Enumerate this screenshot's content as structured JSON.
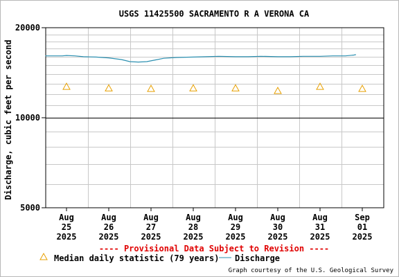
{
  "chart_data": {
    "type": "line",
    "title": "USGS 11425500 SACRAMENTO R A VERONA CA",
    "ylabel": "Discharge, cubic feet per second",
    "xlabel": "",
    "y_scale": "log",
    "ylim": [
      5000,
      20000
    ],
    "y_ticks": [
      {
        "value": 5000,
        "label": "5000"
      },
      {
        "value": 10000,
        "label": "10000"
      },
      {
        "value": 20000,
        "label": "20000"
      }
    ],
    "x_ticks": [
      {
        "month": "Aug",
        "day": "25",
        "year": "2025"
      },
      {
        "month": "Aug",
        "day": "26",
        "year": "2025"
      },
      {
        "month": "Aug",
        "day": "27",
        "year": "2025"
      },
      {
        "month": "Aug",
        "day": "28",
        "year": "2025"
      },
      {
        "month": "Aug",
        "day": "29",
        "year": "2025"
      },
      {
        "month": "Aug",
        "day": "30",
        "year": "2025"
      },
      {
        "month": "Aug",
        "day": "31",
        "year": "2025"
      },
      {
        "month": "Sep",
        "day": "01",
        "year": "2025"
      }
    ],
    "grid": true,
    "series": [
      {
        "name": "Discharge",
        "color": "#2a8fb0",
        "points": [
          [
            -0.5,
            16100
          ],
          [
            -0.1,
            16100
          ],
          [
            0.0,
            16150
          ],
          [
            0.2,
            16100
          ],
          [
            0.4,
            16000
          ],
          [
            0.7,
            15950
          ],
          [
            1.0,
            15850
          ],
          [
            1.3,
            15650
          ],
          [
            1.5,
            15400
          ],
          [
            1.7,
            15350
          ],
          [
            1.9,
            15400
          ],
          [
            2.1,
            15600
          ],
          [
            2.3,
            15800
          ],
          [
            2.6,
            15900
          ],
          [
            3.0,
            15950
          ],
          [
            3.3,
            16000
          ],
          [
            3.6,
            16050
          ],
          [
            4.0,
            16000
          ],
          [
            4.3,
            16000
          ],
          [
            4.6,
            16050
          ],
          [
            5.0,
            16000
          ],
          [
            5.3,
            16000
          ],
          [
            5.6,
            16050
          ],
          [
            6.0,
            16050
          ],
          [
            6.3,
            16100
          ],
          [
            6.6,
            16100
          ],
          [
            6.8,
            16200
          ],
          [
            6.85,
            16250
          ]
        ]
      },
      {
        "name": "Median daily statistic (79 years)",
        "color": "#e8a000",
        "marker": "triangle",
        "points": [
          [
            0,
            12700
          ],
          [
            1,
            12550
          ],
          [
            2,
            12500
          ],
          [
            3,
            12550
          ],
          [
            4,
            12550
          ],
          [
            5,
            12300
          ],
          [
            6,
            12700
          ],
          [
            7,
            12500
          ]
        ]
      }
    ],
    "annotation": "---- Provisional Data Subject to Revision ----",
    "annotation_color": "#e00000",
    "credit": "Graph courtesy of the U.S. Geological Survey"
  }
}
